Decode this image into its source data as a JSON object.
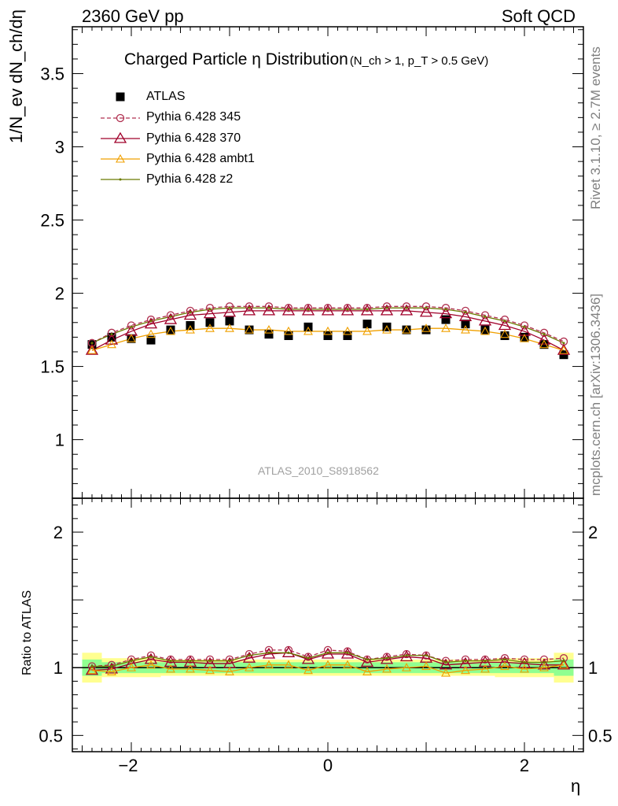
{
  "header": {
    "left": "2360 GeV pp",
    "right": "Soft QCD"
  },
  "side_labels": {
    "rivet": "Rivet 3.1.10, ≥ 2.7M events",
    "mcplots": "mcplots.cern.ch [arXiv:1306.3436]"
  },
  "analysis_id": "ATLAS_2010_S8918562",
  "colors": {
    "atlas": "#000000",
    "p345": "#b03050",
    "p370": "#a0002a",
    "ambt1": "#f0a000",
    "z2": "#6b7a00",
    "band_inner": "#90ff90",
    "band_outer": "#ffff90"
  },
  "chart_data": [
    {
      "type": "scatter",
      "title": "Charged Particle η Distribution",
      "title_cut": "(N_ch > 1, p_T > 0.5 GeV)",
      "ylabel": "1/N_ev dN_ch/dη",
      "xlim": [
        -2.6,
        2.6
      ],
      "ylim": [
        0.6,
        3.82
      ],
      "yticks": [
        1,
        1.5,
        2,
        2.5,
        3,
        3.5
      ],
      "x": [
        -2.4,
        -2.2,
        -2.0,
        -1.8,
        -1.6,
        -1.4,
        -1.2,
        -1.0,
        -0.8,
        -0.6,
        -0.4,
        -0.2,
        0.0,
        0.2,
        0.4,
        0.6,
        0.8,
        1.0,
        1.2,
        1.4,
        1.6,
        1.8,
        2.0,
        2.2,
        2.4
      ],
      "legend": "top-left",
      "series": [
        {
          "name": "ATLAS",
          "marker": "square",
          "values": [
            1.65,
            1.7,
            1.69,
            1.68,
            1.75,
            1.78,
            1.8,
            1.81,
            1.75,
            1.72,
            1.71,
            1.77,
            1.71,
            1.71,
            1.79,
            1.77,
            1.75,
            1.75,
            1.82,
            1.79,
            1.75,
            1.71,
            1.7,
            1.65,
            1.58
          ]
        },
        {
          "name": "Pythia 6.428 345",
          "marker": "circle",
          "values": [
            1.66,
            1.73,
            1.78,
            1.82,
            1.85,
            1.88,
            1.9,
            1.91,
            1.91,
            1.91,
            1.9,
            1.9,
            1.9,
            1.9,
            1.9,
            1.91,
            1.91,
            1.91,
            1.9,
            1.88,
            1.85,
            1.82,
            1.78,
            1.73,
            1.67
          ]
        },
        {
          "name": "Pythia 6.428 370",
          "marker": "triangle",
          "values": [
            1.61,
            1.68,
            1.74,
            1.79,
            1.82,
            1.85,
            1.86,
            1.87,
            1.88,
            1.88,
            1.88,
            1.88,
            1.88,
            1.88,
            1.88,
            1.88,
            1.88,
            1.87,
            1.86,
            1.84,
            1.81,
            1.78,
            1.74,
            1.68,
            1.61
          ]
        },
        {
          "name": "Pythia 6.428 ambt1",
          "marker": "triangle-small",
          "values": [
            1.61,
            1.65,
            1.69,
            1.72,
            1.74,
            1.75,
            1.76,
            1.76,
            1.75,
            1.75,
            1.74,
            1.74,
            1.74,
            1.74,
            1.74,
            1.75,
            1.75,
            1.76,
            1.76,
            1.75,
            1.74,
            1.72,
            1.69,
            1.65,
            1.61
          ]
        },
        {
          "name": "Pythia 6.428 z2",
          "marker": "dot",
          "values": [
            1.66,
            1.72,
            1.77,
            1.81,
            1.84,
            1.87,
            1.89,
            1.9,
            1.9,
            1.9,
            1.89,
            1.89,
            1.89,
            1.89,
            1.89,
            1.9,
            1.9,
            1.9,
            1.89,
            1.87,
            1.84,
            1.81,
            1.77,
            1.72,
            1.66
          ]
        }
      ]
    },
    {
      "type": "scatter",
      "ylabel": "Ratio to ATLAS",
      "xlabel": "η",
      "xlim": [
        -2.6,
        2.6
      ],
      "ylim": [
        0.38,
        2.25
      ],
      "yticks": [
        0.5,
        1,
        2
      ],
      "xticks": [
        -2,
        0,
        2
      ],
      "x": [
        -2.4,
        -2.2,
        -2.0,
        -1.8,
        -1.6,
        -1.4,
        -1.2,
        -1.0,
        -0.8,
        -0.6,
        -0.4,
        -0.2,
        0.0,
        0.2,
        0.4,
        0.6,
        0.8,
        1.0,
        1.2,
        1.4,
        1.6,
        1.8,
        2.0,
        2.2,
        2.4
      ],
      "bands": {
        "inner": [
          0.06,
          0.04,
          0.04,
          0.04,
          0.04,
          0.04,
          0.04,
          0.04,
          0.04,
          0.04,
          0.04,
          0.04,
          0.04,
          0.04,
          0.04,
          0.04,
          0.04,
          0.04,
          0.04,
          0.04,
          0.04,
          0.04,
          0.04,
          0.04,
          0.06
        ],
        "outer": [
          0.11,
          0.07,
          0.07,
          0.07,
          0.06,
          0.06,
          0.06,
          0.06,
          0.06,
          0.06,
          0.06,
          0.06,
          0.06,
          0.06,
          0.06,
          0.06,
          0.06,
          0.06,
          0.06,
          0.06,
          0.06,
          0.07,
          0.07,
          0.07,
          0.11
        ]
      },
      "series": [
        {
          "name": "Pythia 6.428 345",
          "values": [
            1.01,
            1.02,
            1.06,
            1.09,
            1.06,
            1.06,
            1.06,
            1.06,
            1.1,
            1.13,
            1.13,
            1.08,
            1.13,
            1.12,
            1.06,
            1.08,
            1.1,
            1.09,
            1.05,
            1.06,
            1.06,
            1.07,
            1.06,
            1.06,
            1.07
          ]
        },
        {
          "name": "Pythia 6.428 370",
          "values": [
            0.98,
            0.99,
            1.03,
            1.06,
            1.04,
            1.04,
            1.03,
            1.03,
            1.07,
            1.1,
            1.11,
            1.06,
            1.1,
            1.1,
            1.04,
            1.06,
            1.08,
            1.07,
            1.02,
            1.03,
            1.04,
            1.04,
            1.03,
            1.02,
            1.02
          ]
        },
        {
          "name": "Pythia 6.428 ambt1",
          "values": [
            0.98,
            0.97,
            1.0,
            1.02,
            0.99,
            0.99,
            0.98,
            0.97,
            1.0,
            1.02,
            1.02,
            0.98,
            1.02,
            1.02,
            0.97,
            0.99,
            1.0,
            1.01,
            0.96,
            0.98,
            0.99,
            1.01,
            0.99,
            1.0,
            1.02
          ]
        },
        {
          "name": "Pythia 6.428 z2",
          "values": [
            1.01,
            1.01,
            1.05,
            1.08,
            1.05,
            1.05,
            1.05,
            1.05,
            1.09,
            1.11,
            1.11,
            1.07,
            1.11,
            1.11,
            1.06,
            1.07,
            1.09,
            1.09,
            1.04,
            1.05,
            1.05,
            1.06,
            1.04,
            1.04,
            1.05
          ]
        }
      ]
    }
  ]
}
